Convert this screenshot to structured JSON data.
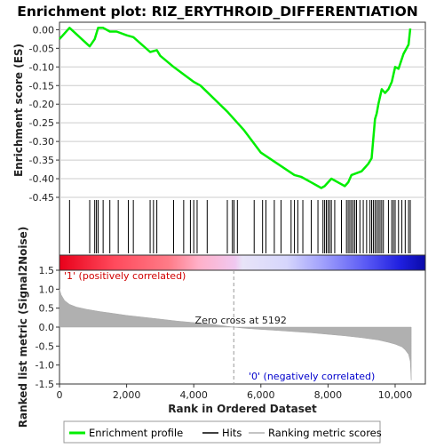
{
  "chart_data": [
    {
      "type": "line",
      "title": "Enrichment plot: RIZ_ERYTHROID_DIFFERENTIATION",
      "ylabel": "Enrichment score (ES)",
      "ylim": [
        -0.45,
        0.02
      ],
      "yticks": [
        0.0,
        -0.05,
        -0.1,
        -0.15,
        -0.2,
        -0.25,
        -0.3,
        -0.35,
        -0.4,
        -0.45
      ],
      "ytick_labels": [
        "0.00",
        "-0.05",
        "-0.10",
        "-0.15",
        "-0.20",
        "-0.25",
        "-0.30",
        "-0.35",
        "-0.40",
        "-0.45"
      ],
      "xlim": [
        0,
        10900
      ],
      "series": [
        {
          "name": "Enrichment profile",
          "color": "#00ee00",
          "x": [
            0,
            300,
            900,
            1050,
            1150,
            1300,
            1500,
            1700,
            2000,
            2200,
            2700,
            2900,
            3000,
            3400,
            3700,
            4000,
            4200,
            5000,
            5500,
            6000,
            6500,
            7000,
            7200,
            7500,
            7800,
            7900,
            8100,
            8300,
            8500,
            8600,
            8700,
            8850,
            9000,
            9100,
            9200,
            9300,
            9400,
            9450,
            9500,
            9600,
            9700,
            9800,
            9900,
            10000,
            10100,
            10250,
            10400,
            10450
          ],
          "y": [
            -0.025,
            0.005,
            -0.045,
            -0.025,
            0.005,
            0.005,
            -0.005,
            -0.005,
            -0.015,
            -0.02,
            -0.06,
            -0.055,
            -0.07,
            -0.1,
            -0.12,
            -0.14,
            -0.15,
            -0.22,
            -0.27,
            -0.33,
            -0.36,
            -0.39,
            -0.395,
            -0.41,
            -0.425,
            -0.42,
            -0.4,
            -0.41,
            -0.42,
            -0.41,
            -0.39,
            -0.385,
            -0.38,
            -0.37,
            -0.36,
            -0.345,
            -0.24,
            -0.225,
            -0.2,
            -0.16,
            -0.17,
            -0.16,
            -0.14,
            -0.1,
            -0.105,
            -0.065,
            -0.04,
            0.003
          ]
        }
      ],
      "hits": [
        300,
        900,
        1050,
        1100,
        1150,
        1300,
        1500,
        1750,
        2050,
        2200,
        2700,
        2800,
        2900,
        3400,
        3700,
        3900,
        4000,
        4100,
        4400,
        5000,
        5150,
        5200,
        5300,
        5800,
        6050,
        6150,
        6400,
        6600,
        6900,
        7000,
        7100,
        7250,
        7500,
        7700,
        7850,
        7900,
        7950,
        8000,
        8050,
        8100,
        8200,
        8400,
        8550,
        8600,
        8650,
        8700,
        8750,
        8800,
        8850,
        8950,
        9050,
        9150,
        9250,
        9300,
        9350,
        9400,
        9450,
        9500,
        9550,
        9600,
        9650,
        9800,
        9900,
        9950,
        10000,
        10100,
        10200,
        10300,
        10400,
        10450
      ]
    },
    {
      "type": "area",
      "ylabel": "Ranked list metric (Signal2Noise)",
      "xlabel": "Rank in Ordered Dataset",
      "ylim": [
        -1.5,
        1.5
      ],
      "yticks": [
        1.5,
        1.0,
        0.5,
        0.0,
        -0.5,
        -1.0,
        -1.5
      ],
      "ytick_labels": [
        "1.5",
        "1.0",
        "0.5",
        "0.0",
        "-0.5",
        "-1.0",
        "-1.5"
      ],
      "xticks": [
        0,
        2000,
        4000,
        6000,
        8000,
        10000
      ],
      "xtick_labels": [
        "0",
        "2,000",
        "4,000",
        "6,000",
        "8,000",
        "10,000"
      ],
      "x": [
        0,
        50,
        150,
        300,
        500,
        800,
        1200,
        1600,
        2000,
        2500,
        3000,
        3500,
        4000,
        4500,
        5000,
        5192,
        5500,
        6000,
        6500,
        7000,
        7500,
        8000,
        8500,
        9000,
        9500,
        9800,
        10000,
        10200,
        10300,
        10400,
        10450,
        10480
      ],
      "y": [
        1.0,
        0.85,
        0.7,
        0.6,
        0.53,
        0.47,
        0.41,
        0.36,
        0.31,
        0.26,
        0.21,
        0.16,
        0.12,
        0.08,
        0.02,
        0.0,
        -0.03,
        -0.06,
        -0.09,
        -0.12,
        -0.15,
        -0.19,
        -0.23,
        -0.28,
        -0.34,
        -0.4,
        -0.45,
        -0.52,
        -0.6,
        -0.72,
        -0.9,
        -1.4
      ],
      "color": "#b0b0b0",
      "annotations": {
        "zero_cross": "Zero cross at 5192",
        "pos_label": "'1' (positively correlated)",
        "neg_label": "'0' (negatively correlated)",
        "pos_color": "#ff0000",
        "neg_color": "#0000ff"
      }
    }
  ],
  "legend": {
    "items": [
      {
        "label": "Enrichment profile",
        "color": "#00ee00"
      },
      {
        "label": "Hits",
        "color": "#000000"
      },
      {
        "label": "Ranking metric scores",
        "color": "#b0b0b0"
      }
    ]
  }
}
